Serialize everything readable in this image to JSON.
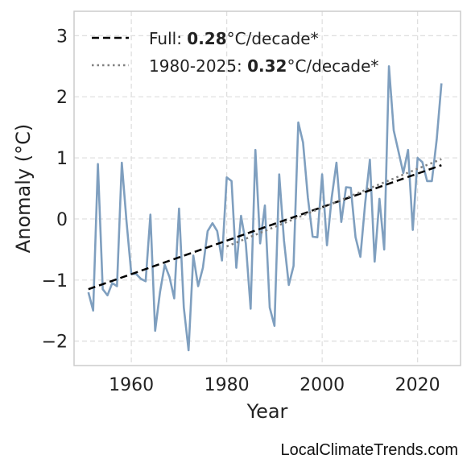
{
  "chart_data": {
    "type": "line",
    "xlabel": "Year",
    "ylabel": "Anomaly (°C)",
    "xlim": [
      1948,
      2029
    ],
    "ylim": [
      -2.4,
      3.4
    ],
    "xticks": [
      1960,
      1980,
      2000,
      2020
    ],
    "yticks": [
      -2,
      -1,
      0,
      1,
      2,
      3
    ],
    "xtick_labels": [
      "1960",
      "1980",
      "2000",
      "2020"
    ],
    "ytick_labels": [
      "−2",
      "−1",
      "0",
      "1",
      "2",
      "3"
    ],
    "grid": true,
    "legend_position": "top-left",
    "colors": {
      "series": "#7f9fbf",
      "full_trend": "#000000",
      "recent_trend": "#808080",
      "grid": "#dddddd",
      "frame": "#cccccc"
    },
    "series": [
      {
        "x": [
          1951,
          1952,
          1953,
          1954,
          1955,
          1956,
          1957,
          1958,
          1959,
          1960,
          1961,
          1962,
          1963,
          1964,
          1965,
          1966,
          1967,
          1968,
          1969,
          1970,
          1971,
          1972,
          1973,
          1974,
          1975,
          1976,
          1977,
          1978,
          1979,
          1980,
          1981,
          1982,
          1983,
          1984,
          1985,
          1986,
          1987,
          1988,
          1989,
          1990,
          1991,
          1992,
          1993,
          1994,
          1995,
          1996,
          1997,
          1998,
          1999,
          2000,
          2001,
          2002,
          2003,
          2004,
          2005,
          2006,
          2007,
          2008,
          2009,
          2010,
          2011,
          2012,
          2013,
          2014,
          2015,
          2016,
          2017,
          2018,
          2019,
          2020,
          2021,
          2022,
          2023,
          2024,
          2025
        ],
        "y": [
          -1.2,
          -1.5,
          0.9,
          -1.15,
          -1.25,
          -1.05,
          -1.1,
          0.92,
          -0.05,
          -0.9,
          -0.9,
          -0.98,
          -1.02,
          0.07,
          -1.83,
          -1.2,
          -0.75,
          -0.95,
          -1.3,
          0.17,
          -1.45,
          -2.15,
          -0.6,
          -1.1,
          -0.8,
          -0.2,
          -0.07,
          -0.2,
          -0.68,
          0.68,
          0.62,
          -0.8,
          0.05,
          -0.4,
          -1.47,
          1.13,
          -0.4,
          0.22,
          -1.45,
          -1.75,
          0.73,
          -0.35,
          -1.08,
          -0.77,
          1.58,
          1.25,
          0.35,
          -0.29,
          -0.3,
          0.73,
          -0.43,
          0.35,
          0.92,
          -0.05,
          0.52,
          0.51,
          -0.3,
          -0.62,
          0.25,
          0.97,
          -0.7,
          0.33,
          -0.5,
          2.5,
          1.45,
          1.1,
          0.75,
          1.13,
          -0.18,
          1.0,
          0.93,
          0.62,
          0.62,
          1.3,
          2.22
        ]
      }
    ],
    "trends": [
      {
        "label_prefix": "Full: ",
        "value": "0.28",
        "label_suffix": "°C/decade*",
        "style": "dashed",
        "x": [
          1951,
          2025
        ],
        "y": [
          -1.15,
          0.88
        ]
      },
      {
        "label_prefix": "1980-2025: ",
        "value": "0.32",
        "label_suffix": "°C/decade*",
        "style": "dotted",
        "x": [
          1980,
          2025
        ],
        "y": [
          -0.45,
          0.98
        ]
      }
    ]
  },
  "credit": "LocalClimateTrends.com"
}
